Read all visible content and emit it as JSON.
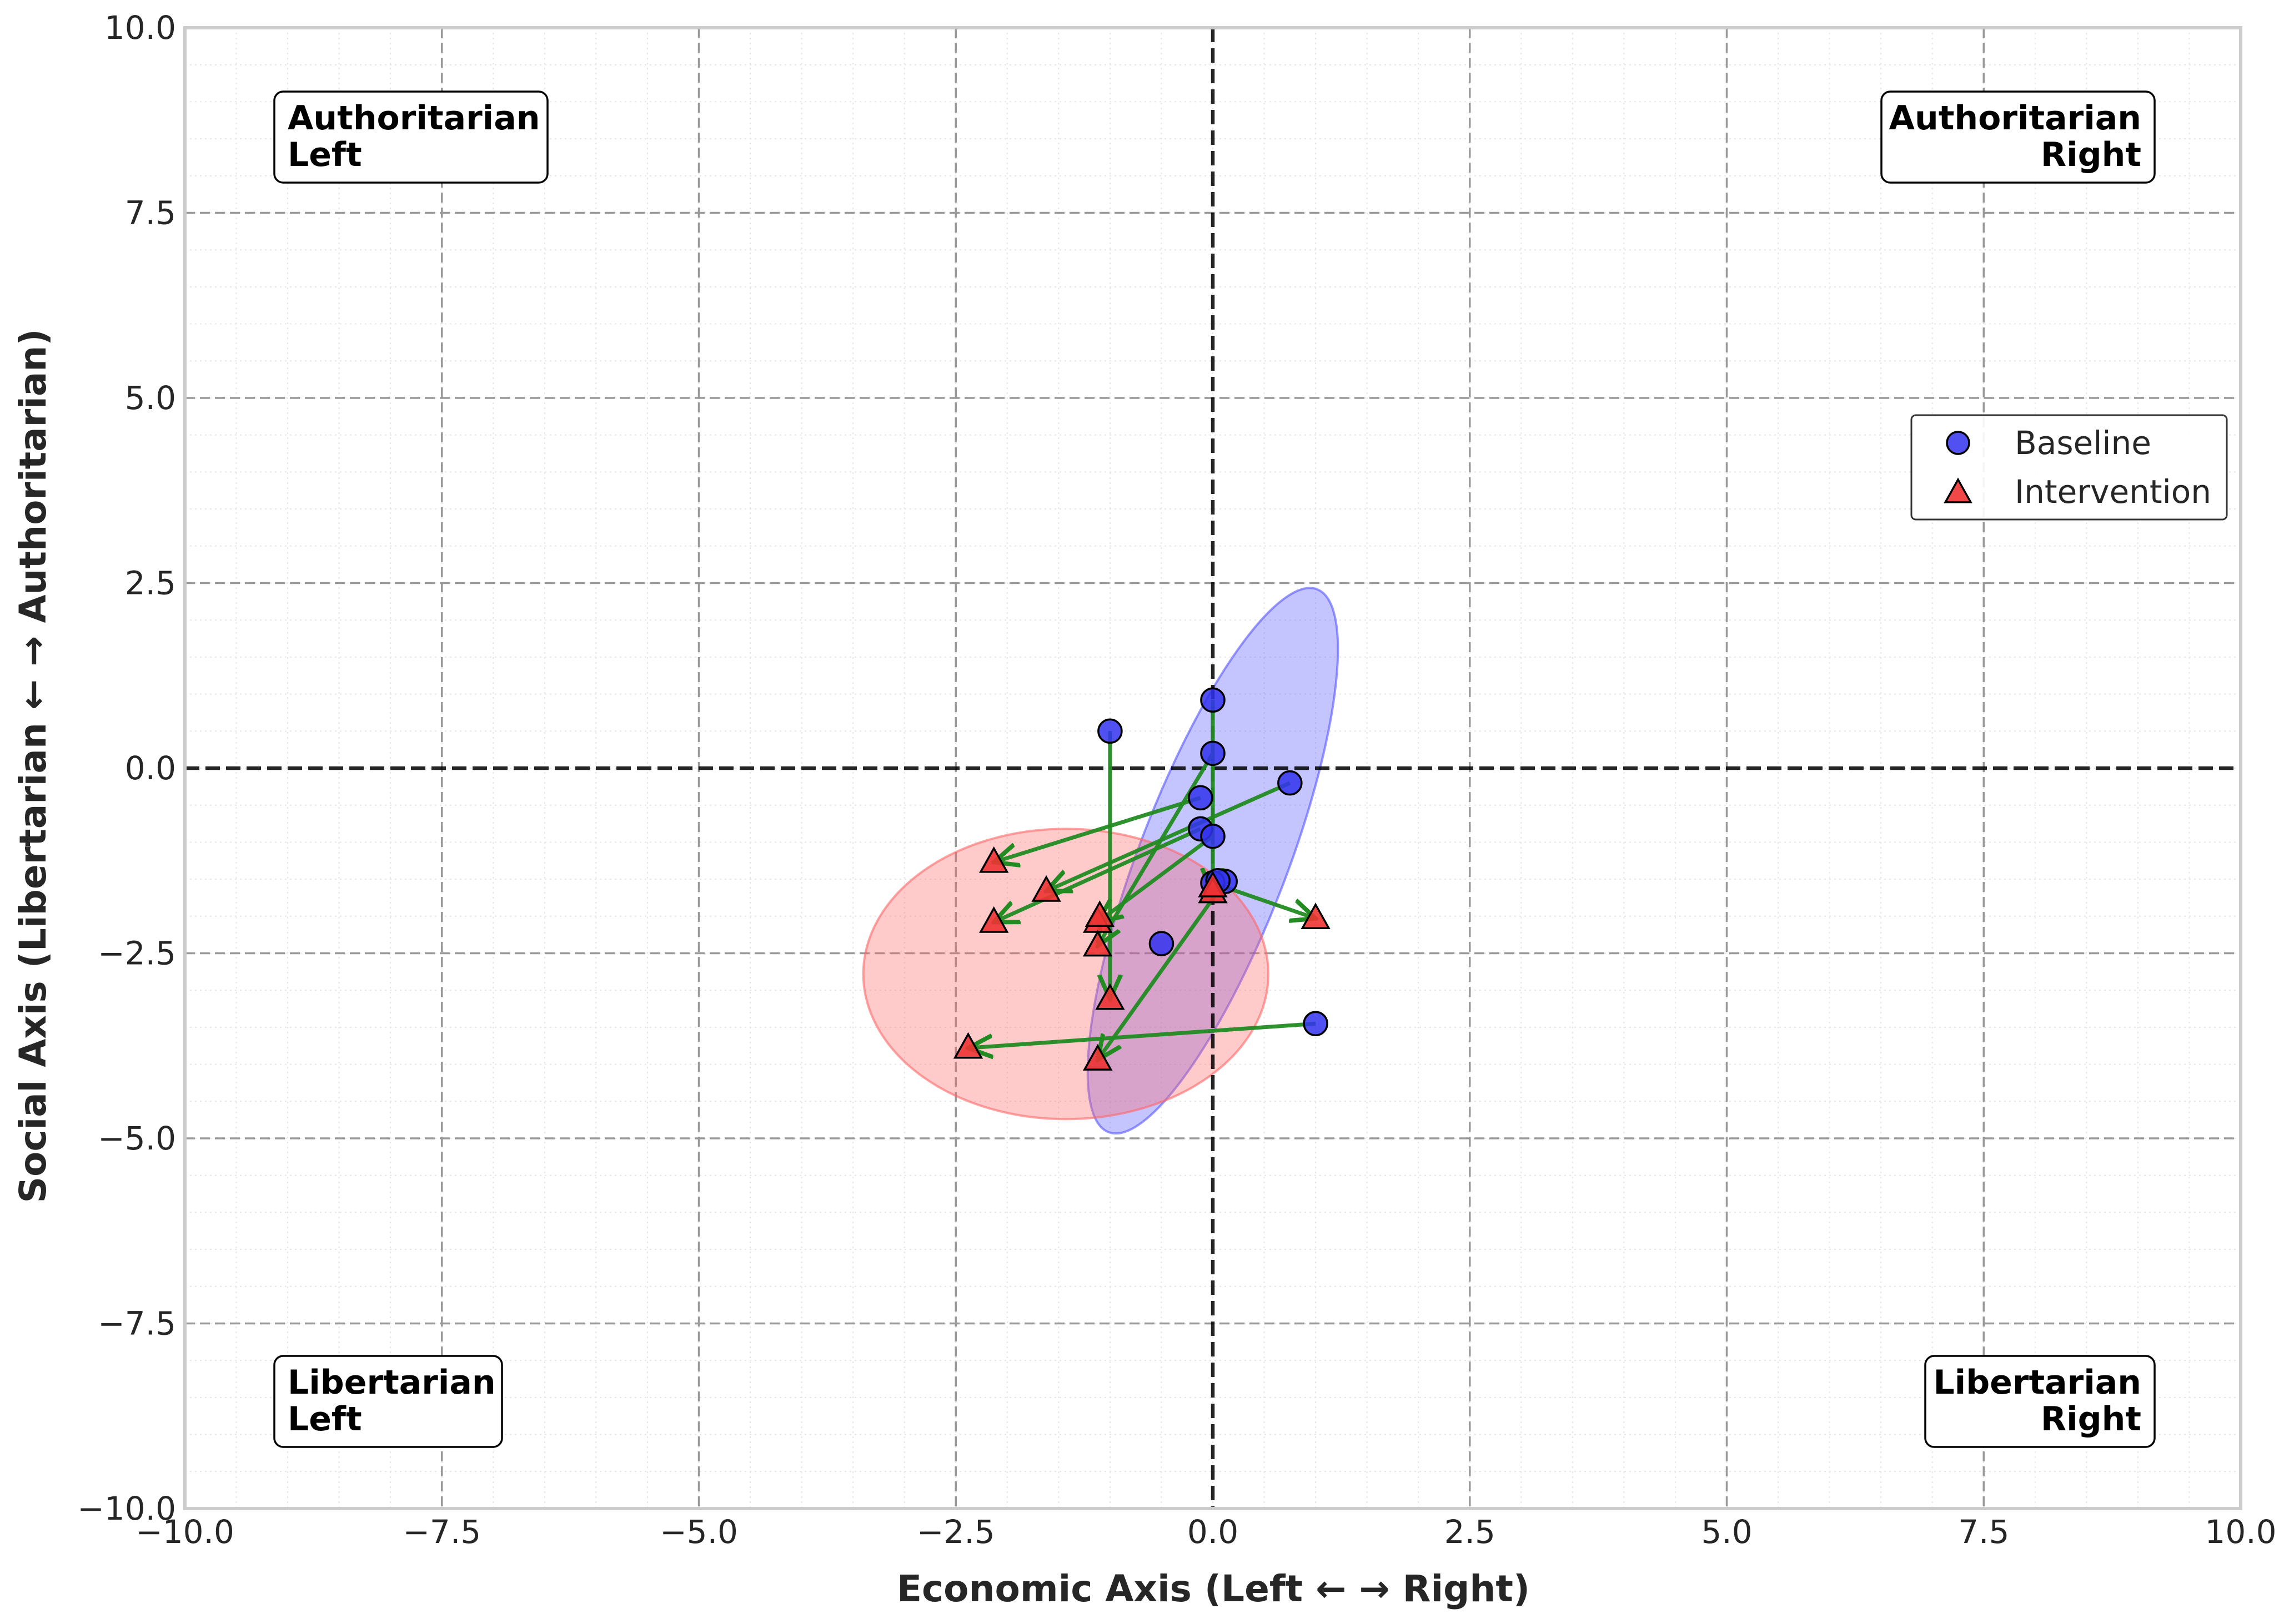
{
  "chart_data": {
    "type": "scatter",
    "xlabel": "Economic Axis (Left ← → Right)",
    "ylabel": "Social Axis (Libertarian ← → Authoritarian)",
    "xlim": [
      -10,
      10
    ],
    "ylim": [
      -10,
      10
    ],
    "grid": true,
    "x_ticks": [
      -10,
      -7.5,
      -5,
      -2.5,
      0,
      2.5,
      5,
      7.5,
      10
    ],
    "y_ticks": [
      -10,
      -7.5,
      -5,
      -2.5,
      0,
      2.5,
      5,
      7.5,
      10
    ],
    "x_tick_labels": [
      "−10.0",
      "−7.5",
      "−5.0",
      "−2.5",
      "0.0",
      "2.5",
      "5.0",
      "7.5",
      "10.0"
    ],
    "y_tick_labels": [
      "−10.0",
      "−7.5",
      "−5.0",
      "−2.5",
      "0.0",
      "2.5",
      "5.0",
      "7.5",
      "10.0"
    ],
    "quadrant_labels": {
      "top_left": [
        "Authoritarian",
        "Left"
      ],
      "top_right": [
        "Authoritarian",
        "Right"
      ],
      "bottom_left": [
        "Libertarian",
        "Left"
      ],
      "bottom_right": [
        "Libertarian",
        "Right"
      ]
    },
    "legend": {
      "position": "center-right",
      "entries": [
        "Baseline",
        "Intervention"
      ]
    },
    "series": [
      {
        "name": "Baseline",
        "marker": "circle",
        "color": "#3333ee",
        "points": [
          [
            -1.0,
            0.5
          ],
          [
            0.0,
            0.92
          ],
          [
            0.0,
            0.2
          ],
          [
            0.75,
            -0.2
          ],
          [
            -0.12,
            -0.4
          ],
          [
            -0.12,
            -0.82
          ],
          [
            0.0,
            -0.92
          ],
          [
            0.12,
            -1.53
          ],
          [
            0.0,
            -1.55
          ],
          [
            -0.5,
            -2.37
          ],
          [
            1.0,
            -3.45
          ],
          [
            0.05,
            -1.52
          ]
        ]
      },
      {
        "name": "Intervention",
        "marker": "triangle",
        "color": "#ee3333",
        "points": [
          [
            -2.13,
            -1.27
          ],
          [
            -1.62,
            -1.66
          ],
          [
            -2.13,
            -2.08
          ],
          [
            -1.12,
            -2.08
          ],
          [
            -1.12,
            -2.4
          ],
          [
            -1.0,
            -3.12
          ],
          [
            -2.38,
            -3.78
          ],
          [
            -1.12,
            -3.94
          ],
          [
            0.0,
            -1.68
          ],
          [
            1.0,
            -2.03
          ],
          [
            0.0,
            -1.6
          ],
          [
            -1.1,
            -2.0
          ]
        ]
      }
    ],
    "arrows": [
      {
        "from": [
          -1.0,
          0.5
        ],
        "to": [
          -1.0,
          -3.12
        ]
      },
      {
        "from": [
          0.0,
          0.92
        ],
        "to": [
          0.0,
          -1.68
        ]
      },
      {
        "from": [
          0.0,
          0.2
        ],
        "to": [
          -1.12,
          -2.4
        ]
      },
      {
        "from": [
          0.75,
          -0.2
        ],
        "to": [
          -1.62,
          -1.66
        ]
      },
      {
        "from": [
          -0.12,
          -0.4
        ],
        "to": [
          -2.13,
          -1.27
        ]
      },
      {
        "from": [
          -0.12,
          -0.82
        ],
        "to": [
          -2.13,
          -2.08
        ]
      },
      {
        "from": [
          0.0,
          -0.92
        ],
        "to": [
          -1.12,
          -2.08
        ]
      },
      {
        "from": [
          0.12,
          -1.53
        ],
        "to": [
          -1.12,
          -3.94
        ]
      },
      {
        "from": [
          0.0,
          -1.55
        ],
        "to": [
          1.0,
          -2.03
        ]
      },
      {
        "from": [
          1.0,
          -3.45
        ],
        "to": [
          -2.38,
          -3.78
        ]
      }
    ],
    "ellipses": [
      {
        "series": "Baseline",
        "color": "#5555ff",
        "center": [
          0.0,
          -1.25
        ],
        "rx": 2.83,
        "ry": 1.0,
        "angle_deg": 69
      },
      {
        "series": "Intervention",
        "color": "#ff6666",
        "center": [
          -1.43,
          -2.78
        ],
        "rx": 1.97,
        "ry": 1.96,
        "angle_deg": 0
      }
    ]
  }
}
